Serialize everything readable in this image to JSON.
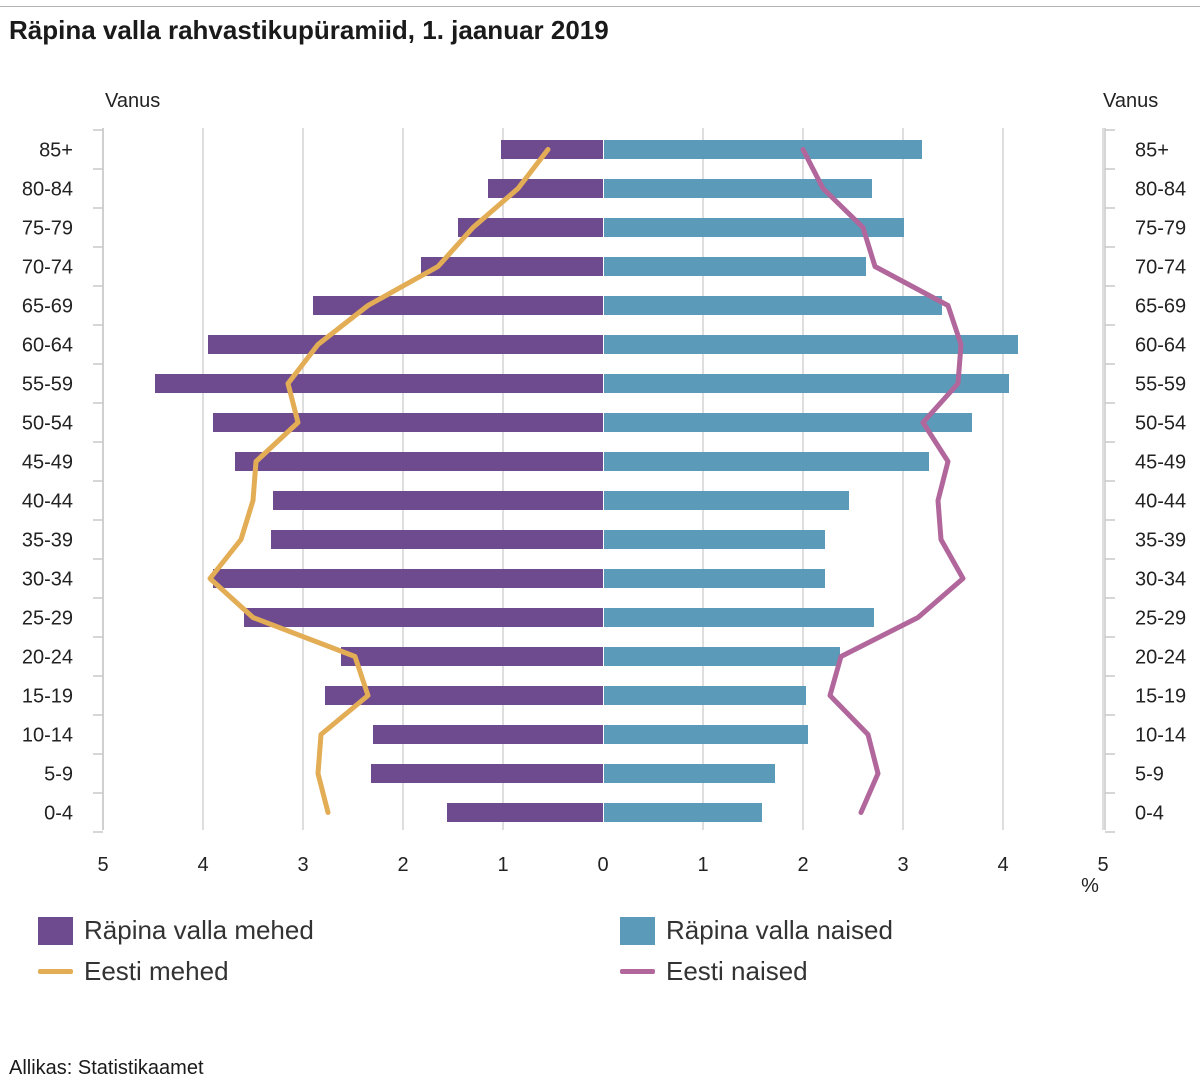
{
  "title": "Räpina valla rahvastikupüramiid, 1. jaanuar 2019",
  "source": "Allikas: Statistikaamet",
  "chart_data": {
    "type": "bar",
    "orientation": "horizontal-pyramid",
    "y_axis_label_left": "Vanus",
    "y_axis_label_right": "Vanus",
    "x_unit_label": "%",
    "x_ticks_left": [
      "5",
      "4",
      "3",
      "2",
      "1",
      "0"
    ],
    "x_ticks_right": [
      "1",
      "2",
      "3",
      "4",
      "5"
    ],
    "xlim": [
      -5,
      5
    ],
    "categories": [
      "85+",
      "80-84",
      "75-79",
      "70-74",
      "65-69",
      "60-64",
      "55-59",
      "50-54",
      "45-49",
      "40-44",
      "35-39",
      "30-34",
      "25-29",
      "20-24",
      "15-19",
      "10-14",
      "5-9",
      "0-4"
    ],
    "series": [
      {
        "name": "Räpina valla mehed",
        "kind": "bar",
        "side": "left",
        "color": "#6e4a8e",
        "values": [
          1.02,
          1.15,
          1.45,
          1.82,
          2.9,
          3.95,
          4.48,
          3.9,
          3.68,
          3.3,
          3.32,
          3.9,
          3.59,
          2.62,
          2.78,
          2.3,
          2.32,
          1.56
        ]
      },
      {
        "name": "Räpina valla naised",
        "kind": "bar",
        "side": "right",
        "color": "#5b9ab8",
        "values": [
          3.18,
          2.68,
          3.0,
          2.62,
          3.38,
          4.14,
          4.05,
          3.68,
          3.25,
          2.45,
          2.21,
          2.21,
          2.7,
          2.36,
          2.02,
          2.04,
          1.71,
          1.58
        ]
      },
      {
        "name": "Eesti mehed",
        "kind": "line",
        "side": "left",
        "color": "#e3ad56",
        "values": [
          0.55,
          0.85,
          1.3,
          1.65,
          2.35,
          2.85,
          3.15,
          3.05,
          3.47,
          3.5,
          3.62,
          3.93,
          3.5,
          2.48,
          2.35,
          2.82,
          2.85,
          2.75
        ]
      },
      {
        "name": "Eesti naised",
        "kind": "line",
        "side": "right",
        "color": "#b1679c",
        "values": [
          2.0,
          2.2,
          2.6,
          2.72,
          3.45,
          3.58,
          3.55,
          3.2,
          3.45,
          3.35,
          3.38,
          3.6,
          3.15,
          2.38,
          2.27,
          2.65,
          2.75,
          2.58
        ]
      }
    ],
    "grid": true,
    "legend_position": "bottom"
  },
  "legend": [
    {
      "label": "Räpina valla mehed",
      "kind": "bar",
      "color": "#6e4a8e"
    },
    {
      "label": "Räpina valla naised",
      "kind": "bar",
      "color": "#5b9ab8"
    },
    {
      "label": "Eesti mehed",
      "kind": "line",
      "color": "#e3ad56"
    },
    {
      "label": "Eesti naised",
      "kind": "line",
      "color": "#b1679c"
    }
  ]
}
